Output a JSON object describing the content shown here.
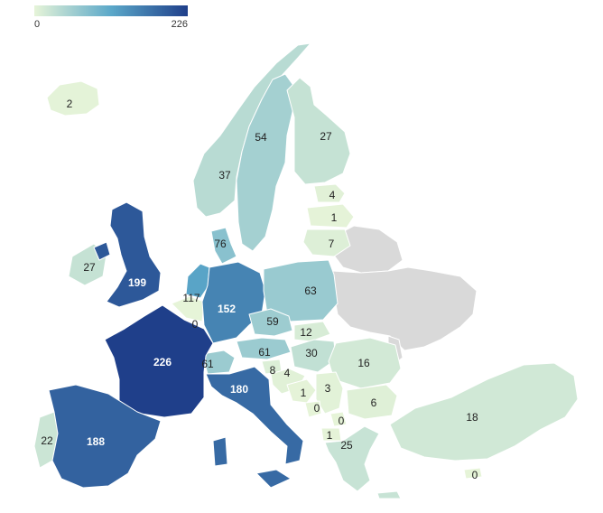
{
  "legend": {
    "min_label": "0",
    "max_label": "226",
    "color_low": "#e6f4d8",
    "color_mid": "#5ba8c9",
    "color_high": "#1f3f8a"
  },
  "no_data_color": "#d9d9d9",
  "countries": [
    {
      "id": "iceland",
      "value": 2,
      "label": "2"
    },
    {
      "id": "norway",
      "value": 37,
      "label": "37"
    },
    {
      "id": "sweden",
      "value": 54,
      "label": "54"
    },
    {
      "id": "finland",
      "value": 27,
      "label": "27"
    },
    {
      "id": "estonia",
      "value": 4,
      "label": "4"
    },
    {
      "id": "latvia",
      "value": 1,
      "label": "1"
    },
    {
      "id": "lithuania",
      "value": 7,
      "label": "7"
    },
    {
      "id": "denmark",
      "value": 76,
      "label": "76"
    },
    {
      "id": "ireland",
      "value": 27,
      "label": "27"
    },
    {
      "id": "united-kingdom",
      "value": 199,
      "label": "199"
    },
    {
      "id": "netherlands",
      "value": 117,
      "label": "117"
    },
    {
      "id": "belgium",
      "value": 0,
      "label": "0"
    },
    {
      "id": "germany",
      "value": 152,
      "label": "152"
    },
    {
      "id": "poland",
      "value": 63,
      "label": "63"
    },
    {
      "id": "czechia",
      "value": 59,
      "label": "59"
    },
    {
      "id": "slovakia",
      "value": 12,
      "label": "12"
    },
    {
      "id": "austria",
      "value": 61,
      "label": "61"
    },
    {
      "id": "hungary",
      "value": 30,
      "label": "30"
    },
    {
      "id": "switzerland",
      "value": 61,
      "label": "61"
    },
    {
      "id": "france",
      "value": 226,
      "label": "226"
    },
    {
      "id": "slovenia",
      "value": 8,
      "label": "8"
    },
    {
      "id": "croatia",
      "value": 4,
      "label": "4"
    },
    {
      "id": "romania",
      "value": 16,
      "label": "16"
    },
    {
      "id": "italy",
      "value": 180,
      "label": "180"
    },
    {
      "id": "bosnia",
      "value": 1,
      "label": "1"
    },
    {
      "id": "serbia",
      "value": 3,
      "label": "3"
    },
    {
      "id": "montenegro",
      "value": 0,
      "label": "0"
    },
    {
      "id": "kosovo",
      "value": 0,
      "label": "0"
    },
    {
      "id": "north-macedonia",
      "value": 1,
      "label": "1"
    },
    {
      "id": "bulgaria",
      "value": 6,
      "label": "6"
    },
    {
      "id": "greece",
      "value": 25,
      "label": "25"
    },
    {
      "id": "portugal",
      "value": 22,
      "label": "22"
    },
    {
      "id": "spain",
      "value": 188,
      "label": "188"
    },
    {
      "id": "turkey",
      "value": 18,
      "label": "18"
    },
    {
      "id": "cyprus",
      "value": 0,
      "label": "0"
    }
  ]
}
